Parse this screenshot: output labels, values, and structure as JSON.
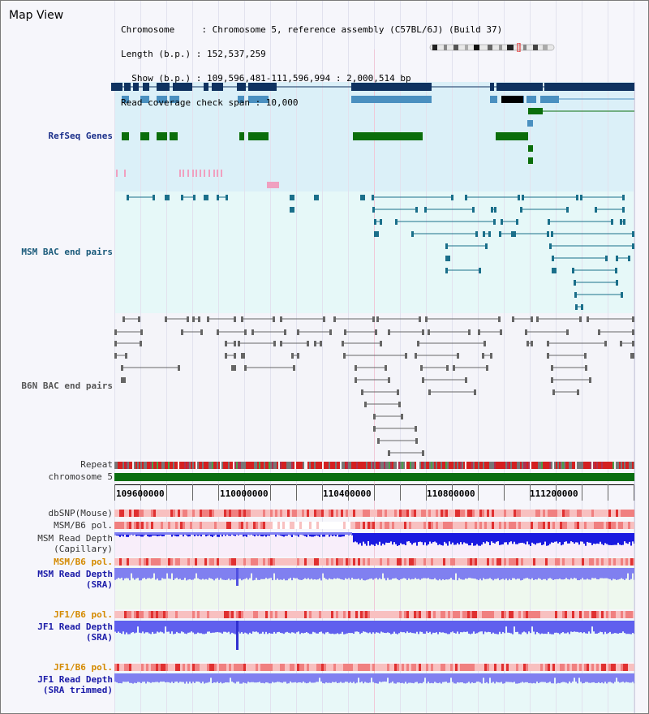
{
  "app": {
    "title": "Map View"
  },
  "header": {
    "lines": [
      "Chromosome     : Chromosome 5, reference assembly (C57BL/6J) (Build 37)",
      "Length (b.p.) : 152,537,259",
      "  Show (b.p.) : 109,596,481-111,596,994 : 2,000,514 bp",
      "Read coverage check span : 10,000"
    ]
  },
  "tracks": {
    "refseq": "RefSeq Genes",
    "msm_bac": "MSM BAC end pairs",
    "b6n_bac": "B6N BAC end pairs",
    "repeat": "Repeat",
    "chromosome": "chromosome 5",
    "dbsnp": "dbSNP(Mouse)",
    "msm_pol_1": "MSM/B6 pol.",
    "msm_depth_cap_1": "MSM Read Depth",
    "msm_depth_cap_2": "(Capillary)",
    "msm_pol_2": "MSM/B6 pol.",
    "msm_depth_sra_1": "MSM Read Depth",
    "msm_depth_sra_2": "(SRA)",
    "jf1_pol_1": "JF1/B6 pol.",
    "jf1_depth_sra_1": "JF1 Read Depth",
    "jf1_depth_sra_2": "(SRA)",
    "jf1_pol_2": "JF1/B6 pol.",
    "jf1_depth_trim_1": "JF1 Read Depth",
    "jf1_depth_trim_2": "(SRA trimmed)"
  },
  "axis": {
    "ticks": [
      "109600000",
      "110000000",
      "110400000",
      "110800000",
      "111200000"
    ]
  },
  "colors": {
    "refseq_bg": "#dbf0f8",
    "msm_bg": "#e6f8f8",
    "gene_dark": "#0f3260",
    "gene_mid": "#4a90c0",
    "gene_green": "#0b6e0b",
    "bac_msm": "#1a6f8a",
    "bac_b6n": "#666666",
    "depth_blue": "#1a1ae0",
    "depth_light": "#8080f0",
    "pol_red": "#e03030",
    "chrom_green": "#0a6e10"
  }
}
